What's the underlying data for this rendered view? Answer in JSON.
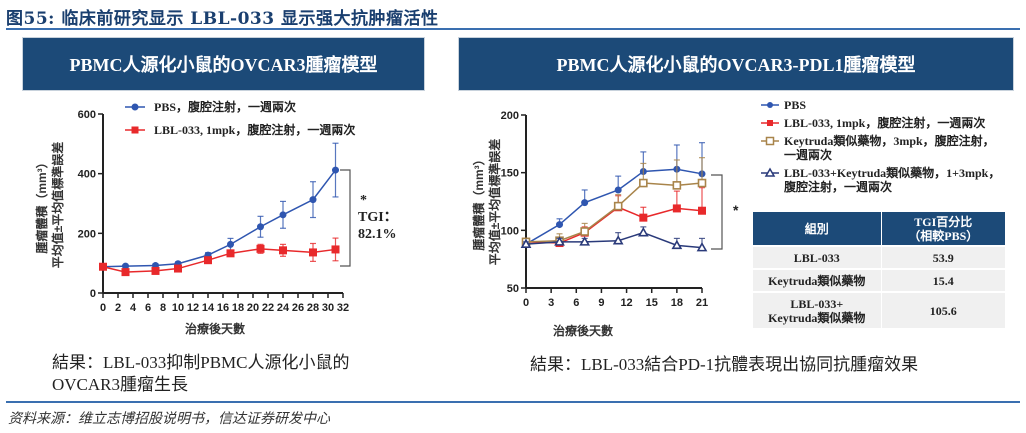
{
  "figure": {
    "title": "图55: 临床前研究显示 LBL-033 显示强大抗肿瘤活性",
    "source": "资料来源：维立志博招股说明书，信达证券研发中心"
  },
  "left_panel": {
    "banner": "PBMC人源化小鼠的OVCAR3腫瘤模型",
    "result_line1": "結果：LBL-033抑制PBMC人源化小鼠的",
    "result_line2": "OVCAR3腫瘤生長",
    "annotation_star": "*",
    "annotation_tgi_label": "TGI：",
    "annotation_tgi_value": "82.1%"
  },
  "right_panel": {
    "banner": "PBMC人源化小鼠的OVCAR3-PDL1腫瘤模型",
    "result": "結果：LBL-033結合PD-1抗體表現出協同抗腫瘤效果",
    "annotation_star": "*",
    "legend": [
      {
        "line1": "PBS",
        "line2": ""
      },
      {
        "line1": "LBL-033, 1mpk，腹腔注射，一週兩次",
        "line2": ""
      },
      {
        "line1": "Keytruda類似藥物，3mpk，腹腔注射，",
        "line2": "一週兩次"
      },
      {
        "line1": "LBL-033+Keytruda類似藥物，1+3mpk，",
        "line2": "腹腔注射，一週兩次"
      }
    ],
    "table": {
      "headers": [
        "組別",
        "TGI百分比",
        "（相較PBS）"
      ],
      "rows": [
        {
          "group": "LBL-033",
          "group2": "",
          "tgi": "53.9"
        },
        {
          "group": "Keytruda類似藥物",
          "group2": "",
          "tgi": "15.4"
        },
        {
          "group": "LBL-033+",
          "group2": "Keytruda類似藥物",
          "tgi": "105.6"
        }
      ]
    }
  },
  "colors": {
    "banner": "#1c4a78",
    "pbs": "#2f56b0",
    "lbl033": "#e8292b",
    "keytruda": "#a8844a",
    "combo": "#2a3a7a",
    "rule": "#3a6fb0"
  },
  "chart_data": [
    {
      "type": "line",
      "title": "PBMC人源化小鼠的OVCAR3腫瘤模型",
      "xlabel": "治療後天數",
      "ylabel": "腫瘤體積（mm³）平均值±平均值標準誤差",
      "xlim": [
        0,
        32
      ],
      "ylim": [
        0,
        600
      ],
      "xticks": [
        0,
        2,
        4,
        6,
        8,
        10,
        12,
        14,
        16,
        18,
        20,
        22,
        24,
        26,
        28,
        30,
        32
      ],
      "yticks": [
        0,
        200,
        400,
        600
      ],
      "legend_position": "top",
      "series": [
        {
          "name": "PBS，腹腔注射，一週兩次",
          "x": [
            0,
            3,
            7,
            10,
            14,
            17,
            21,
            24,
            28,
            31
          ],
          "values": [
            88,
            90,
            92,
            98,
            127,
            163,
            222,
            262,
            313,
            412
          ],
          "errors": [
            5,
            5,
            6,
            6,
            8,
            20,
            35,
            45,
            60,
            90
          ]
        },
        {
          "name": "LBL-033, 1mpk，腹腔注射，一週兩次",
          "x": [
            0,
            3,
            7,
            10,
            14,
            17,
            21,
            24,
            28,
            31
          ],
          "values": [
            88,
            70,
            74,
            82,
            110,
            133,
            148,
            143,
            136,
            146
          ],
          "errors": [
            5,
            5,
            5,
            6,
            6,
            8,
            15,
            20,
            30,
            38
          ]
        }
      ],
      "annotations": [
        "*",
        "TGI：82.1%"
      ]
    },
    {
      "type": "line",
      "title": "PBMC人源化小鼠的OVCAR3-PDL1腫瘤模型",
      "xlabel": "治療後天數",
      "ylabel": "腫瘤體積（mm³）平均值±平均值標準誤差",
      "xlim": [
        0,
        21
      ],
      "ylim": [
        50,
        200
      ],
      "xticks": [
        0,
        3,
        6,
        9,
        12,
        15,
        18,
        21
      ],
      "yticks": [
        50,
        100,
        150,
        200
      ],
      "legend_position": "right",
      "series": [
        {
          "name": "PBS",
          "x": [
            0,
            4,
            7,
            11,
            14,
            18,
            21
          ],
          "values": [
            88,
            105,
            124,
            135,
            151,
            153,
            149
          ],
          "errors": [
            2,
            5,
            11,
            12,
            17,
            21,
            27
          ]
        },
        {
          "name": "LBL-033, 1mpk，腹腔注射，一週兩次",
          "x": [
            0,
            4,
            7,
            11,
            14,
            18,
            21
          ],
          "values": [
            90,
            89,
            98,
            120,
            111,
            119,
            117
          ],
          "errors": [
            2,
            3,
            5,
            10,
            9,
            15,
            20
          ]
        },
        {
          "name": "Keytruda類似藥物，3mpk，腹腔注射，一週兩次",
          "x": [
            0,
            4,
            7,
            11,
            14,
            18,
            21
          ],
          "values": [
            90,
            91,
            99,
            121,
            141,
            139,
            141
          ],
          "errors": [
            2,
            6,
            7,
            10,
            17,
            22,
            22
          ]
        },
        {
          "name": "LBL-033+Keytruda類似藥物，1+3mpk，腹腔注射，一週兩次",
          "x": [
            0,
            4,
            7,
            11,
            14,
            18,
            21
          ],
          "values": [
            88,
            90,
            90,
            91,
            98,
            87,
            85
          ],
          "errors": [
            2,
            3,
            3,
            7,
            5,
            6,
            8
          ]
        }
      ],
      "annotations": [
        "*"
      ],
      "table": {
        "columns": [
          "組別",
          "TGI百分比（相較PBS）"
        ],
        "rows": [
          [
            "LBL-033",
            53.9
          ],
          [
            "Keytruda類似藥物",
            15.4
          ],
          [
            "LBL-033+Keytruda類似藥物",
            105.6
          ]
        ]
      }
    }
  ]
}
